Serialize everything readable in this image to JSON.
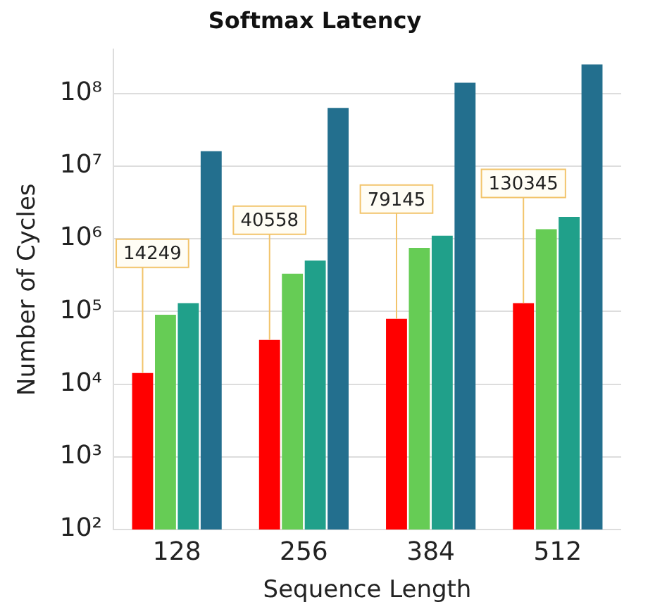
{
  "chart_data": {
    "type": "bar",
    "title": "Softmax Latency",
    "xlabel": "Sequence Length",
    "ylabel": "Number of Cycles",
    "categories": [
      "128",
      "256",
      "384",
      "512"
    ],
    "series": [
      {
        "color": "#ff0000",
        "values": [
          14249,
          40558,
          79145,
          130345
        ],
        "value_labels": [
          "14249",
          "40558",
          "79145",
          "130345"
        ]
      },
      {
        "color": "#66cc55",
        "values": [
          90000,
          330000,
          750000,
          1350000
        ]
      },
      {
        "color": "#20a08a",
        "values": [
          130000,
          500000,
          1100000,
          2000000
        ]
      },
      {
        "color": "#236f8e",
        "values": [
          16000000,
          63000000,
          140000000,
          250000000
        ]
      }
    ],
    "log": "y",
    "ylim": [
      100,
      400000000
    ],
    "yticks": [
      {
        "value": 100,
        "label": "10²"
      },
      {
        "value": 1000,
        "label": "10³"
      },
      {
        "value": 10000,
        "label": "10⁴"
      },
      {
        "value": 100000,
        "label": "10⁵"
      },
      {
        "value": 1000000,
        "label": "10⁶"
      },
      {
        "value": 10000000,
        "label": "10⁷"
      },
      {
        "value": 100000000,
        "label": "10⁸"
      }
    ],
    "grid": "y"
  }
}
